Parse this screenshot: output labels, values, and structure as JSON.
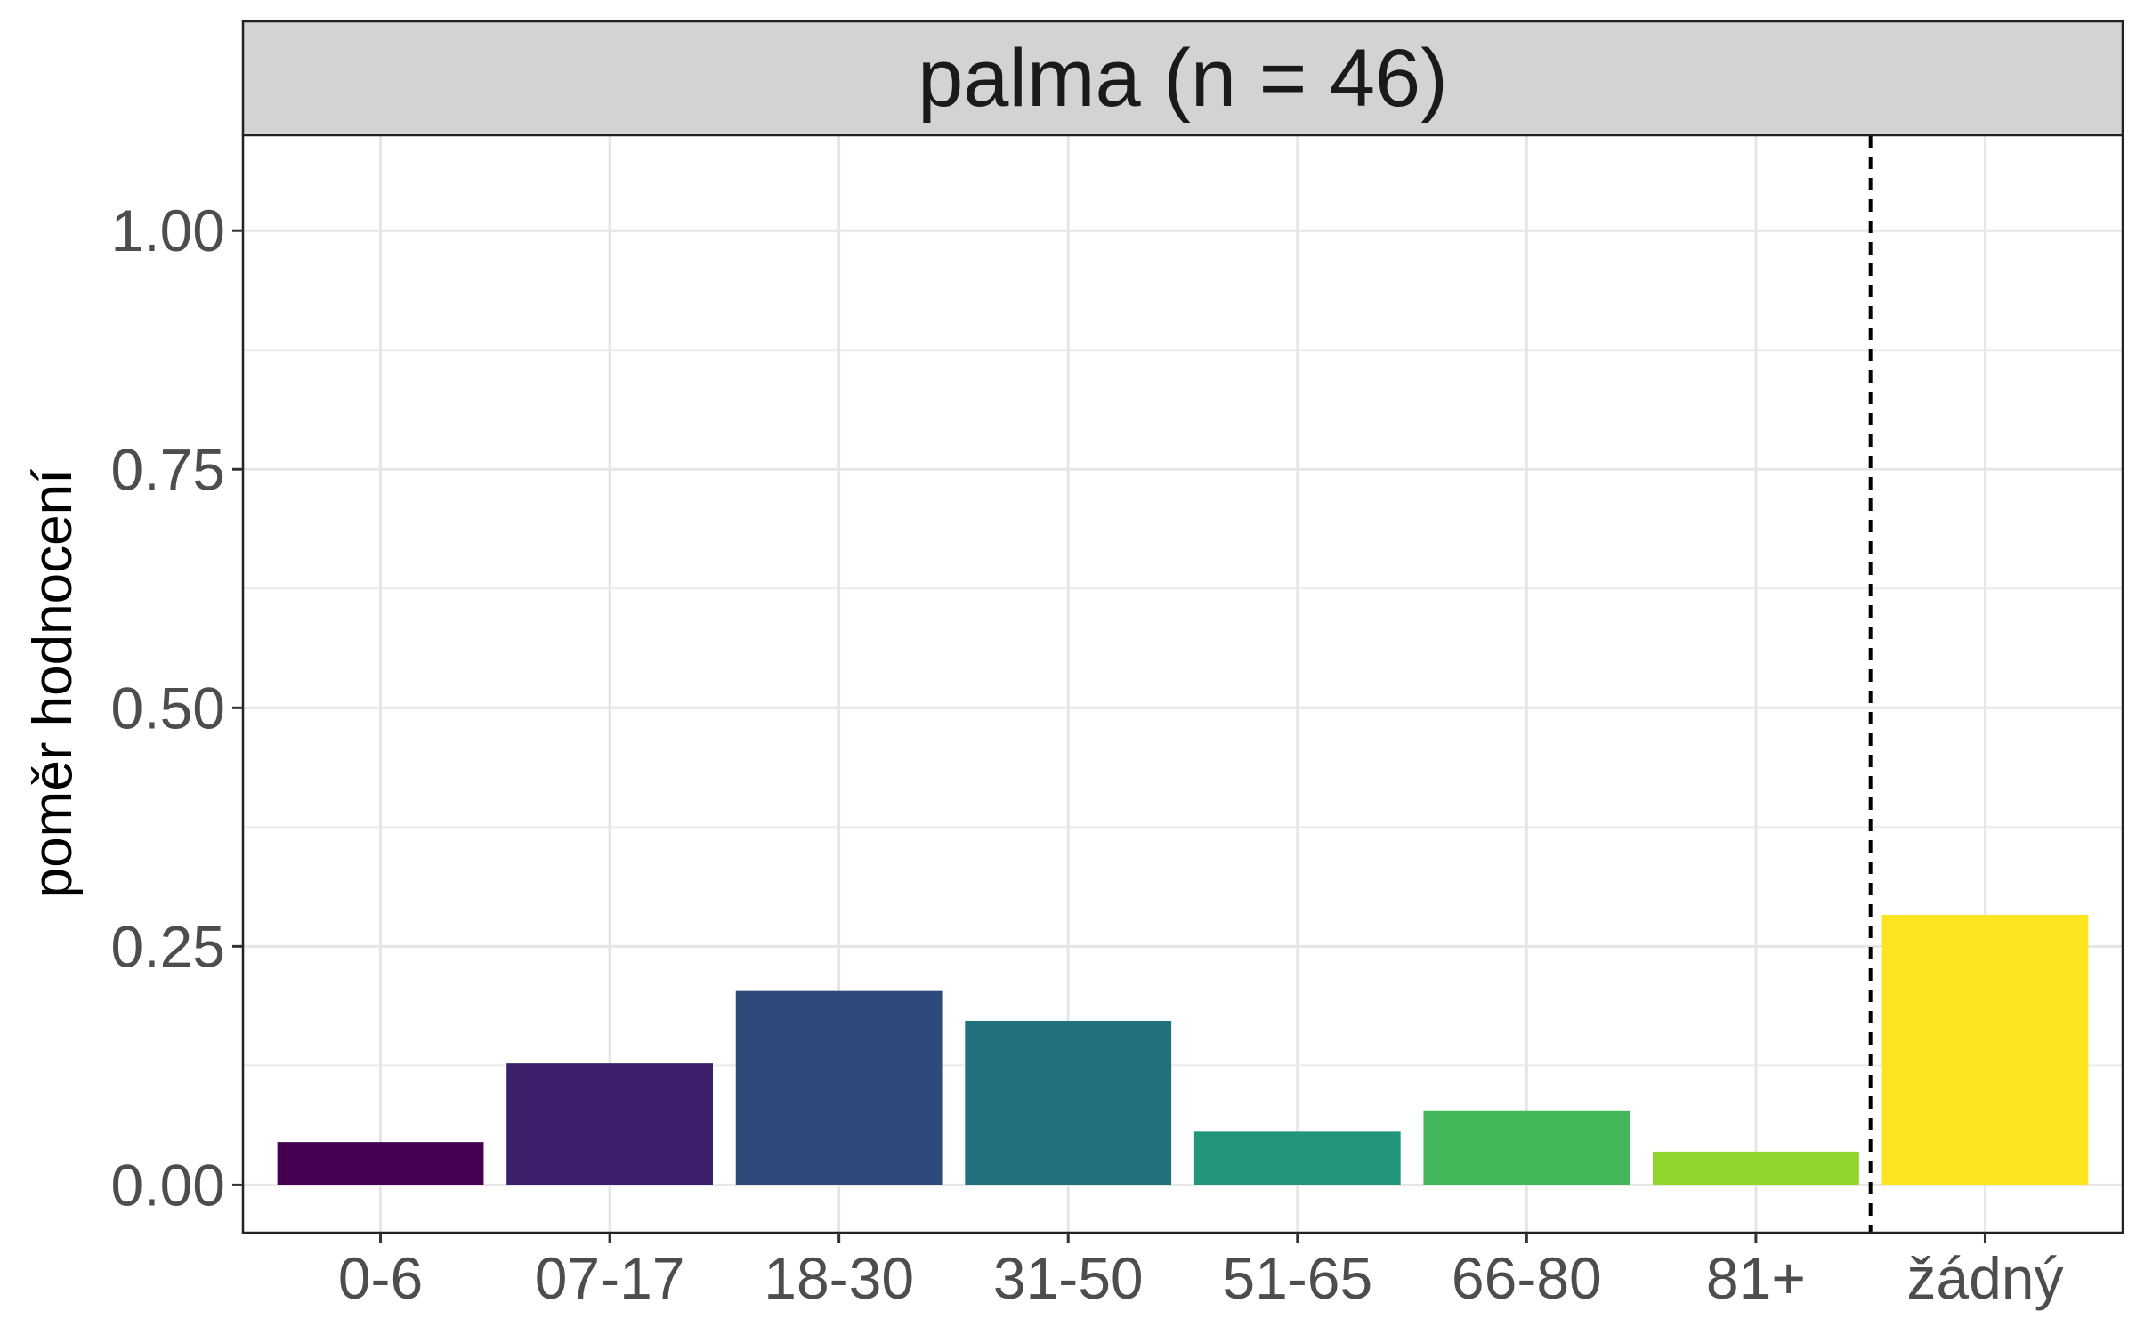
{
  "chart_data": {
    "type": "bar",
    "title": "palma (n = 46)",
    "xlabel": "",
    "ylabel": "poměr hodnocení",
    "categories": [
      "0-6",
      "07-17",
      "18-30",
      "31-50",
      "51-65",
      "66-80",
      "81+",
      "žádný"
    ],
    "values": [
      0.045,
      0.128,
      0.204,
      0.172,
      0.056,
      0.078,
      0.035,
      0.283
    ],
    "colors": [
      "#440154",
      "#3b1f6b",
      "#2d4a7a",
      "#21707d",
      "#22967a",
      "#42b85a",
      "#8fd52c",
      "#fde51f"
    ],
    "ylim": [
      -0.05,
      1.1
    ],
    "yticks": [
      0.0,
      0.25,
      0.5,
      0.75,
      1.0
    ],
    "ytick_labels": [
      "0.00",
      "0.25",
      "0.50",
      "0.75",
      "1.00"
    ],
    "grid": true,
    "legend": "none",
    "separator_after_category": "81+",
    "separator_style": "dashed"
  }
}
